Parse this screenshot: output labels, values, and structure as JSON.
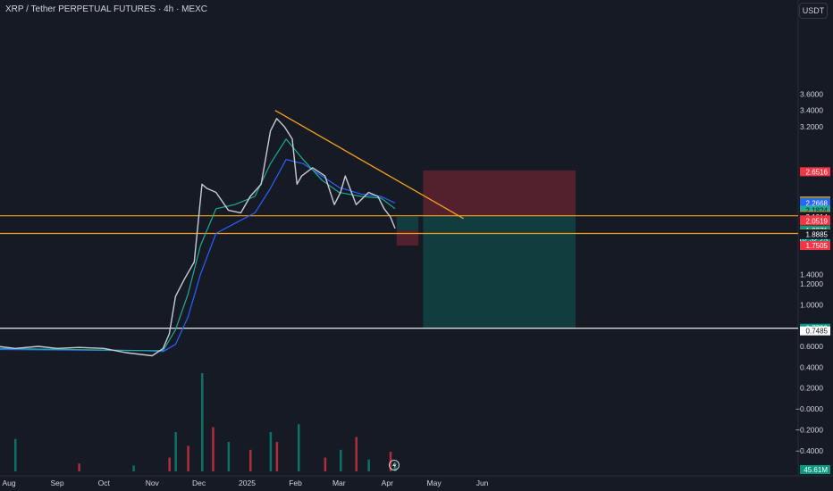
{
  "header": {
    "title": "XRP / Tether PERPETUAL FUTURES · 4h · MEXC",
    "currency": "USDT"
  },
  "chart_data": {
    "type": "line",
    "ylim": [
      -0.3,
      3.8
    ],
    "y_ticks": [
      "3.6000",
      "3.4000",
      "3.2000",
      "1.4000",
      "1.2000",
      "1.0000",
      "0.6000",
      "0.4000",
      "0.2000",
      "−0.0000",
      "−0.2000",
      "−0.4000"
    ],
    "x_ticks": [
      "Aug",
      "Sep",
      "Oct",
      "Nov",
      "Dec",
      "2025",
      "Feb",
      "Mar",
      "Apr",
      "May",
      "Jun"
    ],
    "price": {
      "x": [
        "2024-07-25",
        "2024-08-05",
        "2024-08-20",
        "2024-09-01",
        "2024-09-15",
        "2024-10-01",
        "2024-10-15",
        "2024-11-01",
        "2024-11-08",
        "2024-11-12",
        "2024-11-16",
        "2024-11-22",
        "2024-11-28",
        "2024-12-03",
        "2024-12-06",
        "2024-12-12",
        "2024-12-20",
        "2024-12-28",
        "2025-01-03",
        "2025-01-10",
        "2025-01-16",
        "2025-01-20",
        "2025-01-25",
        "2025-01-30",
        "2025-02-02",
        "2025-02-05",
        "2025-02-12",
        "2025-02-20",
        "2025-02-26",
        "2025-03-02",
        "2025-03-05",
        "2025-03-12",
        "2025-03-20",
        "2025-03-26",
        "2025-03-30",
        "2025-04-03",
        "2025-04-06"
      ],
      "y": [
        0.6,
        0.58,
        0.6,
        0.58,
        0.59,
        0.58,
        0.54,
        0.51,
        0.58,
        0.72,
        1.08,
        1.35,
        1.55,
        2.5,
        2.45,
        2.4,
        2.18,
        2.15,
        2.35,
        2.5,
        3.15,
        3.3,
        3.2,
        3.05,
        2.5,
        2.6,
        2.7,
        2.6,
        2.25,
        2.4,
        2.6,
        2.25,
        2.4,
        2.35,
        2.2,
        2.1,
        1.96
      ]
    },
    "ema_fast": {
      "x": [
        "2024-07-25",
        "2024-10-25",
        "2024-11-08",
        "2024-11-16",
        "2024-11-24",
        "2024-12-02",
        "2024-12-12",
        "2024-12-24",
        "2025-01-06",
        "2025-01-16",
        "2025-01-26",
        "2025-02-06",
        "2025-02-18",
        "2025-03-01",
        "2025-03-15",
        "2025-03-28",
        "2025-04-06"
      ],
      "y": [
        0.58,
        0.56,
        0.56,
        0.76,
        1.1,
        1.75,
        2.2,
        2.25,
        2.35,
        2.75,
        3.05,
        2.8,
        2.55,
        2.4,
        2.35,
        2.33,
        2.2
      ]
    },
    "ema_slow": {
      "x": [
        "2024-07-25",
        "2024-10-25",
        "2024-11-08",
        "2024-11-16",
        "2024-11-24",
        "2024-12-02",
        "2024-12-12",
        "2024-12-24",
        "2025-01-06",
        "2025-01-16",
        "2025-01-26",
        "2025-02-06",
        "2025-02-18",
        "2025-03-01",
        "2025-03-15",
        "2025-03-28",
        "2025-04-06"
      ],
      "y": [
        0.57,
        0.56,
        0.55,
        0.62,
        0.88,
        1.4,
        1.9,
        2.02,
        2.15,
        2.45,
        2.8,
        2.75,
        2.6,
        2.46,
        2.38,
        2.35,
        2.27
      ]
    },
    "trendline": {
      "x": [
        "2025-01-19",
        "2025-05-20"
      ],
      "y": [
        3.4,
        2.08
      ]
    },
    "horizontal_levels": [
      {
        "y": 2.1144,
        "color": "#f7a21b"
      },
      {
        "y": 1.8982,
        "color": "#f7a21b"
      },
      {
        "y": 0.7739,
        "color": "#ffffff"
      }
    ],
    "positions": [
      {
        "x": [
          "2025-04-07",
          "2025-04-21"
        ],
        "entry": 1.9371,
        "target": 2.1014,
        "stop": 1.7505,
        "target_color": "#089981",
        "stop_color": "#f23645"
      },
      {
        "x": [
          "2025-04-24",
          "2025-07-31"
        ],
        "entry": 2.1144,
        "target": 0.7739,
        "stop": 2.6668,
        "target_color": "#089981",
        "stop_color": "#f23645"
      }
    ],
    "price_labels": [
      {
        "text": "2.6516",
        "value": 2.6516,
        "bg": "#f23645",
        "fg": "#ffffff"
      },
      {
        "text": "2.2946",
        "value": 2.2946,
        "bg": "#f7a21b",
        "fg": "#131722"
      },
      {
        "text": "2.2865",
        "value": 2.2865,
        "bg": "#787b86",
        "fg": "#ffffff"
      },
      {
        "text": "2.2736",
        "value": 2.2736,
        "bg": "#089981",
        "fg": "#ffffff"
      },
      {
        "text": "2.2668",
        "value": 2.2668,
        "bg": "#2962ff",
        "fg": "#ffffff"
      },
      {
        "text": "2.1831",
        "value": 2.1831,
        "bg": "#089981",
        "fg": "#ffffff"
      },
      {
        "text": "2.1824",
        "value": 2.1824,
        "bg": "#22ab94",
        "fg": "#131722"
      },
      {
        "text": "2.1144",
        "value": 2.1144,
        "bg": "#f7a21b",
        "fg": "#131722"
      },
      {
        "text": "2.1014",
        "value": 2.1014,
        "bg": "#161a25",
        "fg": "#ffffff"
      },
      {
        "text": "2.0645",
        "value": 2.0645,
        "bg": "#f23645",
        "fg": "#ffffff"
      },
      {
        "text": "2.0519",
        "value": 2.0519,
        "bg": "#f23645",
        "fg": "#ffffff"
      },
      {
        "text": "1.9371",
        "value": 1.9371,
        "bg": "#089981",
        "fg": "#ffffff",
        "sub": "02:32:25"
      },
      {
        "text": "1.8982",
        "value": 1.8982,
        "bg": "#f7a21b",
        "fg": "#131722"
      },
      {
        "text": "1.8885",
        "value": 1.8885,
        "bg": "#161a25",
        "fg": "#ffffff"
      },
      {
        "text": "1.7505",
        "value": 1.7505,
        "bg": "#f23645",
        "fg": "#ffffff"
      },
      {
        "text": "0.7739",
        "value": 0.7739,
        "bg": "#089981",
        "fg": "#ffffff"
      },
      {
        "text": "0.7485",
        "value": 0.7485,
        "bg": "#ffffff",
        "fg": "#131722"
      }
    ],
    "volume": {
      "last_label": "45.61M",
      "x": [
        "2024-08-05",
        "2024-09-15",
        "2024-10-20",
        "2024-11-12",
        "2024-11-16",
        "2024-11-24",
        "2024-12-03",
        "2024-12-10",
        "2024-12-20",
        "2025-01-03",
        "2025-01-16",
        "2025-01-20",
        "2025-02-03",
        "2025-02-20",
        "2025-03-02",
        "2025-03-12",
        "2025-03-20",
        "2025-04-03",
        "2025-04-06"
      ],
      "y": [
        33,
        8,
        6,
        14,
        40,
        26,
        100,
        45,
        30,
        22,
        40,
        30,
        48,
        14,
        22,
        35,
        12,
        20,
        9
      ]
    },
    "colors": {
      "up": "#089981",
      "down": "#f23645",
      "ema_fast": "#22ab94",
      "ema_slow": "#2962ff",
      "trend": "#f7a21b",
      "background": "#161a25"
    }
  }
}
